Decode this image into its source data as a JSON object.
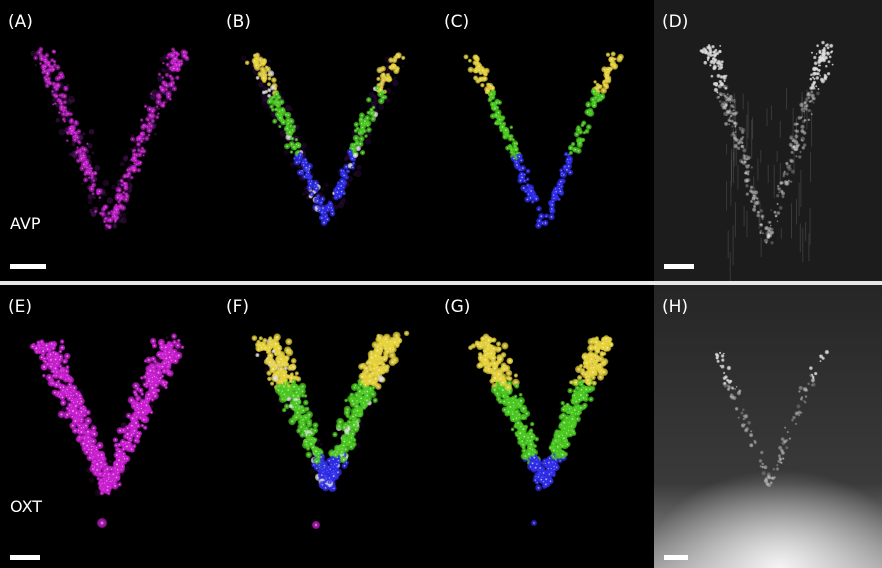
{
  "figure": {
    "panels": [
      {
        "id": "A",
        "label": "(A)",
        "row": "top",
        "kind": "magenta"
      },
      {
        "id": "B",
        "label": "(B)",
        "row": "top",
        "kind": "overlay"
      },
      {
        "id": "C",
        "label": "(C)",
        "row": "top",
        "kind": "segmented"
      },
      {
        "id": "D",
        "label": "(D)",
        "row": "top",
        "kind": "grayscale"
      },
      {
        "id": "E",
        "label": "(E)",
        "row": "bottom",
        "kind": "magenta"
      },
      {
        "id": "F",
        "label": "(F)",
        "row": "bottom",
        "kind": "overlay"
      },
      {
        "id": "G",
        "label": "(G)",
        "row": "bottom",
        "kind": "segmented"
      },
      {
        "id": "H",
        "label": "(H)",
        "row": "bottom",
        "kind": "grayscale"
      }
    ],
    "row_labels": {
      "top": "AVP",
      "bottom": "OXT"
    },
    "colors": {
      "magenta": "#c81ecf",
      "yellow": "#e6d23a",
      "green": "#48c81e",
      "blue": "#2d2be6",
      "white": "#ffffff"
    }
  }
}
